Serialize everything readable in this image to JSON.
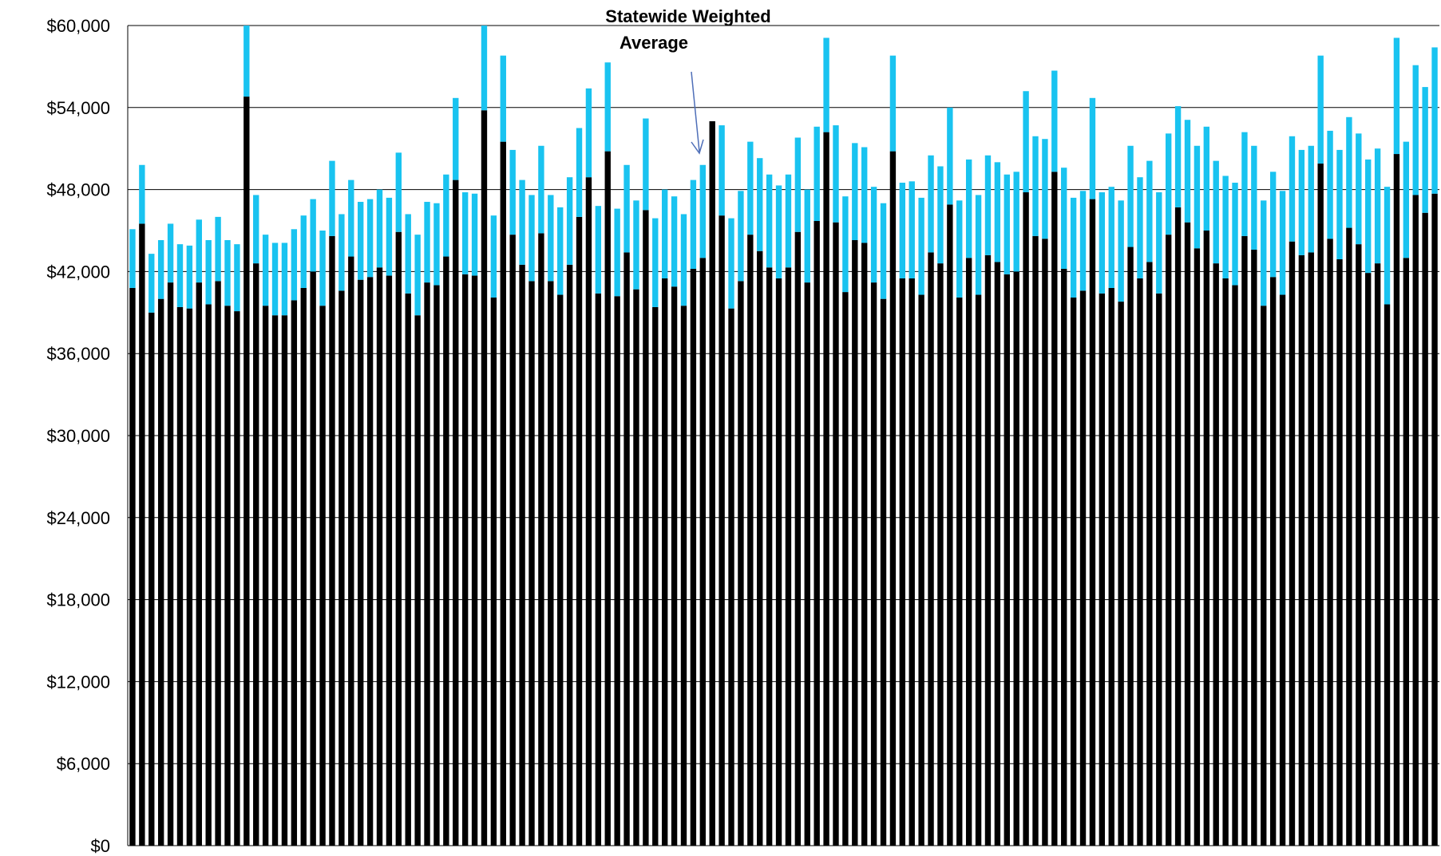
{
  "chart_data": {
    "type": "bar",
    "subtype": "stacked",
    "title": "",
    "xlabel": "",
    "ylabel": "",
    "ylim": [
      0,
      60000
    ],
    "yticks": [
      0,
      6000,
      12000,
      18000,
      24000,
      30000,
      36000,
      42000,
      48000,
      54000,
      60000
    ],
    "ytick_labels": [
      "$0",
      "$6,000",
      "$12,000",
      "$18,000",
      "$24,000",
      "$30,000",
      "$36,000",
      "$42,000",
      "$48,000",
      "$54,000",
      "$60,000"
    ],
    "grid": true,
    "legend": "none",
    "colors": {
      "base": "#000000",
      "additional": "#19C3F0",
      "arrow": "#4F6FB8",
      "grid": "#000000"
    },
    "highlight_index": 46,
    "annotation": {
      "lines": [
        "Statewide Weighted",
        "Average"
      ],
      "target_index": 46
    },
    "series": [
      {
        "values": [
          40800,
          45500,
          39000,
          40000,
          41200,
          39400,
          39300,
          41200,
          39600,
          41300,
          39500,
          39100,
          54800,
          42600,
          39500,
          38800,
          38800,
          39900,
          40800,
          42000,
          39500,
          44600,
          40600,
          43100,
          41400,
          41600,
          42300,
          41700,
          44900,
          40400,
          38800,
          41200,
          41000,
          43100,
          48700,
          41800,
          41700,
          53800,
          40100,
          51500,
          44700,
          42500,
          41300,
          44800,
          41300,
          40300,
          42500,
          46000,
          48900,
          40400,
          50800,
          40200,
          43400,
          40700,
          46500,
          39400,
          41500,
          40900,
          39500,
          42200,
          43000,
          53000,
          46100,
          39300,
          41300,
          44700,
          43500,
          42300,
          41500,
          42300,
          44900,
          41200,
          45700,
          52200,
          45600,
          40500,
          44300,
          44100,
          41200,
          40000,
          50800,
          41500,
          41500,
          40300,
          43400,
          42600,
          46900,
          40100,
          43000,
          40300,
          43200,
          42700,
          41800,
          42000,
          47800,
          44600,
          44400,
          49300,
          42200,
          40100,
          40600,
          47300,
          40400,
          40800,
          39800,
          43800,
          41500,
          42700,
          40400,
          44700,
          46700,
          45600,
          43700,
          45000,
          42600,
          41500,
          41000,
          44600,
          43600,
          39500,
          41600,
          40300,
          44200,
          43200,
          43400,
          49900,
          44400,
          42900,
          45200,
          44000,
          41900,
          42600,
          39600,
          50600,
          43000,
          47600,
          46300,
          47700
        ]
      },
      {
        "values": [
          4300,
          4300,
          4300,
          4300,
          4300,
          4600,
          4600,
          4600,
          4700,
          4700,
          4800,
          4900,
          5200,
          5000,
          5200,
          5300,
          5300,
          5200,
          5300,
          5300,
          5500,
          5500,
          5600,
          5600,
          5700,
          5700,
          5700,
          5700,
          5800,
          5800,
          5900,
          5900,
          6000,
          6000,
          6000,
          6000,
          6000,
          6200,
          6000,
          6300,
          6200,
          6200,
          6300,
          6400,
          6300,
          6400,
          6400,
          6500,
          6500,
          6400,
          6500,
          6400,
          6400,
          6500,
          6700,
          6500,
          6500,
          6600,
          6700,
          6500,
          6800,
          0,
          6600,
          6600,
          6600,
          6800,
          6800,
          6800,
          6800,
          6800,
          6900,
          6800,
          6900,
          6900,
          7100,
          7000,
          7100,
          7000,
          7000,
          7000,
          7000,
          7000,
          7100,
          7100,
          7100,
          7100,
          7100,
          7100,
          7200,
          7300,
          7300,
          7300,
          7300,
          7300,
          7400,
          7300,
          7300,
          7400,
          7400,
          7300,
          7300,
          7400,
          7400,
          7400,
          7400,
          7400,
          7400,
          7400,
          7400,
          7400,
          7400,
          7500,
          7500,
          7600,
          7500,
          7500,
          7500,
          7600,
          7600,
          7700,
          7700,
          7600,
          7700,
          7700,
          7800,
          7900,
          7900,
          8000,
          8100,
          8100,
          8300,
          8400,
          8600,
          8500,
          8500,
          9500,
          9200,
          10700
        ]
      }
    ]
  }
}
